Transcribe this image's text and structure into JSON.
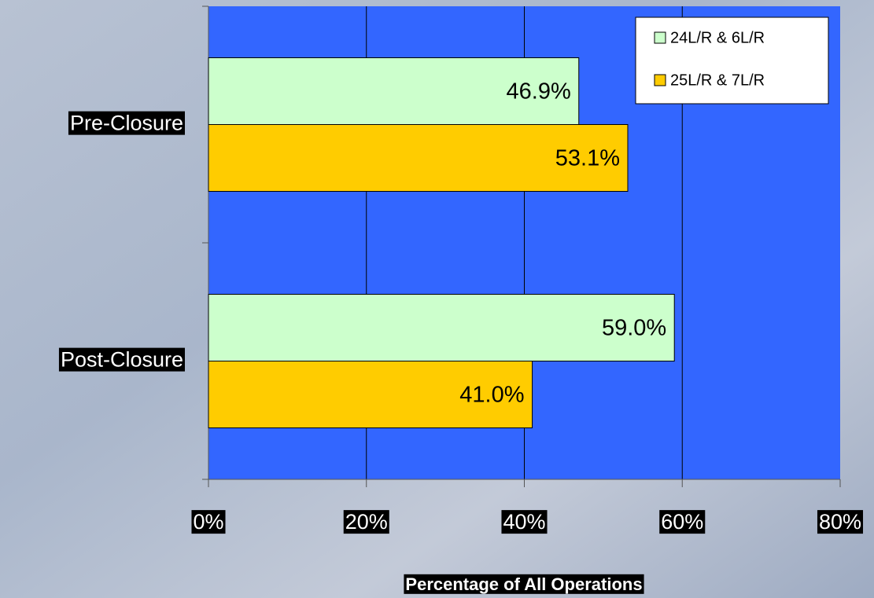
{
  "chart_data": {
    "type": "bar",
    "orientation": "horizontal",
    "x_label": "Percentage of All Operations",
    "categories": [
      "Pre-Closure",
      "Post-Closure"
    ],
    "series": [
      {
        "name": "24L/R & 6L/R",
        "color": "#ccffcc",
        "values": [
          46.9,
          59.0
        ],
        "value_labels": [
          "46.9%",
          "59.0%"
        ]
      },
      {
        "name": "25L/R & 7L/R",
        "color": "#ffcc00",
        "values": [
          53.1,
          41.0
        ],
        "value_labels": [
          "53.1%",
          "41.0%"
        ]
      }
    ],
    "xlim": [
      0,
      80
    ],
    "xticks": [
      {
        "value": 0,
        "label": "0%"
      },
      {
        "value": 20,
        "label": "20%"
      },
      {
        "value": 40,
        "label": "40%"
      },
      {
        "value": 60,
        "label": "60%"
      },
      {
        "value": 80,
        "label": "80%"
      }
    ],
    "grid": true,
    "legend": "top-right",
    "plot_color": "#3366ff"
  }
}
